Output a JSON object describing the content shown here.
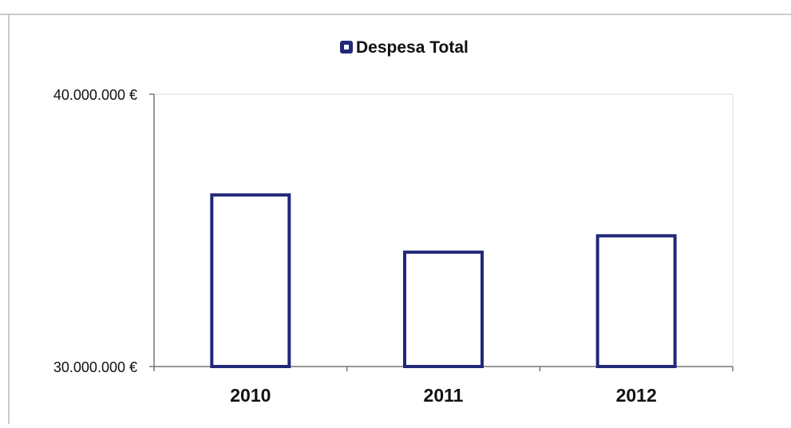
{
  "chart_data": {
    "type": "bar",
    "title": "",
    "xlabel": "",
    "ylabel": "",
    "categories": [
      "2010",
      "2011",
      "2012"
    ],
    "series": [
      {
        "name": "Despesa Total",
        "values": [
          36300000,
          34200000,
          34800000
        ]
      }
    ],
    "ylim": [
      30000000,
      40000000
    ],
    "y_ticks": [
      30000000,
      40000000
    ],
    "y_tick_labels": [
      "30.000.000 €",
      "40.000.000 €"
    ],
    "grid": false,
    "legend_position": "top-center",
    "colors": {
      "bar_stroke": "#22287a",
      "bar_fill": "#ffffff",
      "axis": "#777777",
      "plot_border": "#dddddd",
      "frame": "#bbbbbb",
      "text": "#111111"
    }
  }
}
